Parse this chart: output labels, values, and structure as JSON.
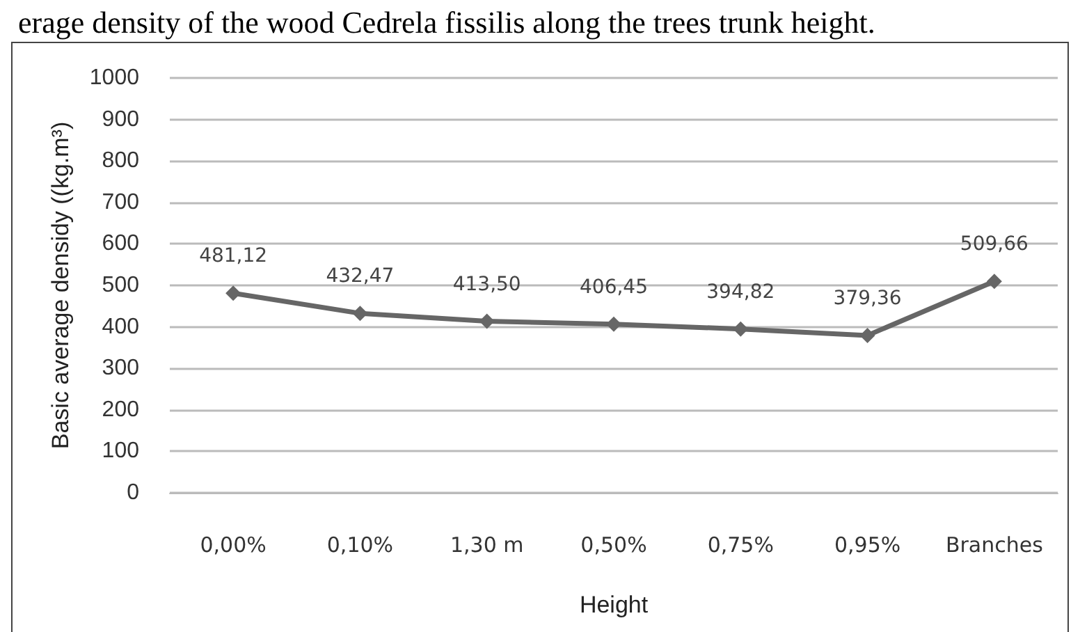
{
  "chart_data": {
    "type": "line",
    "title": "erage density of the wood Cedrela fissilis along the trees trunk height.",
    "xlabel": "Height",
    "ylabel": "Basic average densidy ((kg.m³)",
    "categories": [
      "0,00%",
      "0,10%",
      "1,30 m",
      "0,50%",
      "0,75%",
      "0,95%",
      "Branches"
    ],
    "series": [
      {
        "color": "#666666",
        "values": [
          481.12,
          432.47,
          413.5,
          406.45,
          394.82,
          379.36,
          509.66
        ],
        "value_labels": [
          "481,12",
          "432,47",
          "413,50",
          "406,45",
          "394,82",
          "379,36",
          "509,66"
        ]
      }
    ],
    "ylim": [
      0,
      1000
    ],
    "yticks": [
      0,
      100,
      200,
      300,
      400,
      500,
      600,
      700,
      800,
      900,
      1000
    ],
    "grid": "y",
    "marker": "diamond",
    "line_style": "solid"
  }
}
